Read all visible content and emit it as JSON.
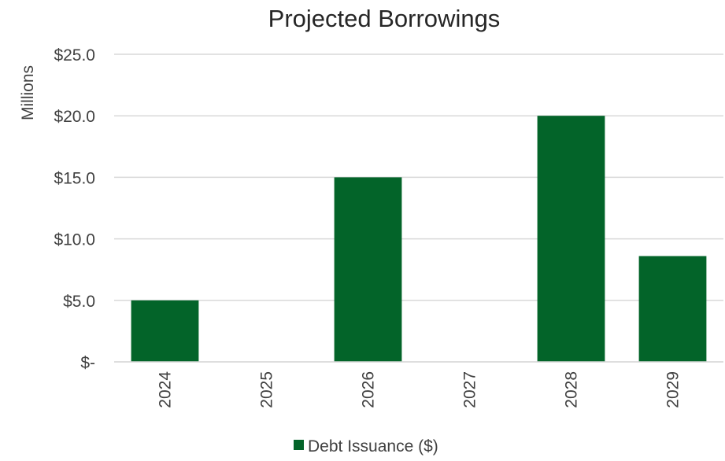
{
  "chart_data": {
    "type": "bar",
    "title": "Projected Borrowings",
    "ylabel": "Millions",
    "xlabel": "",
    "categories": [
      "2024",
      "2025",
      "2026",
      "2027",
      "2028",
      "2029"
    ],
    "series": [
      {
        "name": "Debt Issuance ($)",
        "values": [
          5.0,
          0,
          15.0,
          0,
          20.0,
          8.6
        ],
        "color": "#036429"
      }
    ],
    "ylim": [
      0,
      25
    ],
    "yticks": [
      0,
      5,
      10,
      15,
      20,
      25
    ],
    "ytick_labels": [
      "$-",
      "$5.0",
      "$10.0",
      "$15.0",
      "$20.0",
      "$25.0"
    ],
    "grid": true,
    "legend_position": "bottom",
    "gridline_color": "#d9d9d9",
    "text_color": "#404040"
  }
}
